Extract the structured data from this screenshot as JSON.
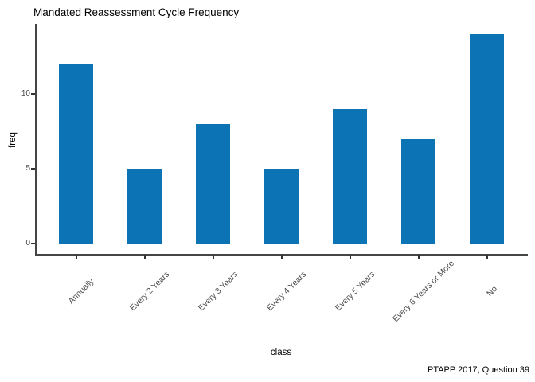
{
  "caption": "PTAPP 2017, Question 39",
  "chart_data": {
    "type": "bar",
    "title": "Mandated Reassessment Cycle Frequency",
    "xlabel": "class",
    "ylabel": "freq",
    "categories": [
      "Annually",
      "Every 2 Years",
      "Every 3 Years",
      "Every 4 Years",
      "Every 5 Years",
      "Every 6 Years or More",
      "No"
    ],
    "values": [
      12,
      5,
      8,
      5,
      9,
      7,
      14
    ],
    "yticks": [
      0,
      5,
      10
    ],
    "ylim": [
      -0.7,
      14.7
    ],
    "grid": false,
    "legend_position": "none",
    "bar_color": "#0c74b4",
    "axis_line_color": "#454545",
    "tick_label_color": "#4d4d4d",
    "title_color": "#000000"
  }
}
